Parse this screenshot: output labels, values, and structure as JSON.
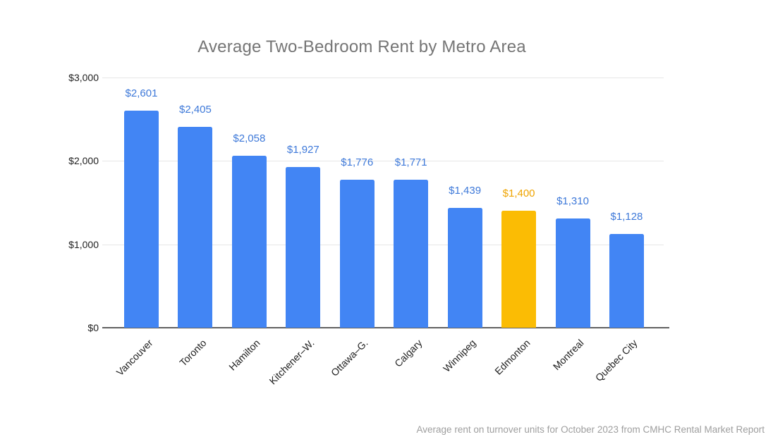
{
  "chart_data": {
    "type": "bar",
    "title": "Average Two-Bedroom Rent by Metro Area",
    "categories": [
      "Vancouver",
      "Toronto",
      "Hamilton",
      "Kitchener–W.",
      "Ottawa–G.",
      "Calgary",
      "Winnipeg",
      "Edmonton",
      "Montreal",
      "Quebec City"
    ],
    "values": [
      2601,
      2405,
      2058,
      1927,
      1776,
      1771,
      1439,
      1400,
      1310,
      1128
    ],
    "value_labels": [
      "$2,601",
      "$2,405",
      "$2,058",
      "$1,927",
      "$1,776",
      "$1,771",
      "$1,439",
      "$1,400",
      "$1,310",
      "$1,128"
    ],
    "highlight_category": "Edmonton",
    "highlight_index": 7,
    "xlabel": "",
    "ylabel": "",
    "ylim": [
      0,
      3000
    ],
    "y_ticks": [
      {
        "label": "$0",
        "value": 0
      },
      {
        "label": "$1,000",
        "value": 1000
      },
      {
        "label": "$2,000",
        "value": 2000
      },
      {
        "label": "$3,000",
        "value": 3000
      }
    ],
    "grid": true,
    "legend": "none",
    "footnote": "Average rent on turnover units for October 2023 from CMHC Rental Market Report",
    "colors": {
      "bar_default": "#4285F4",
      "bar_highlight": "#FBBC04",
      "annotation_default": "#3E79D9",
      "annotation_highlight": "#EFA400",
      "title_text": "#757575",
      "axis_text": "#212121",
      "gridline": "#E6E6E6",
      "baseline": "#616161",
      "footnote_text": "#9E9E9E",
      "background": "#FFFFFF"
    }
  }
}
